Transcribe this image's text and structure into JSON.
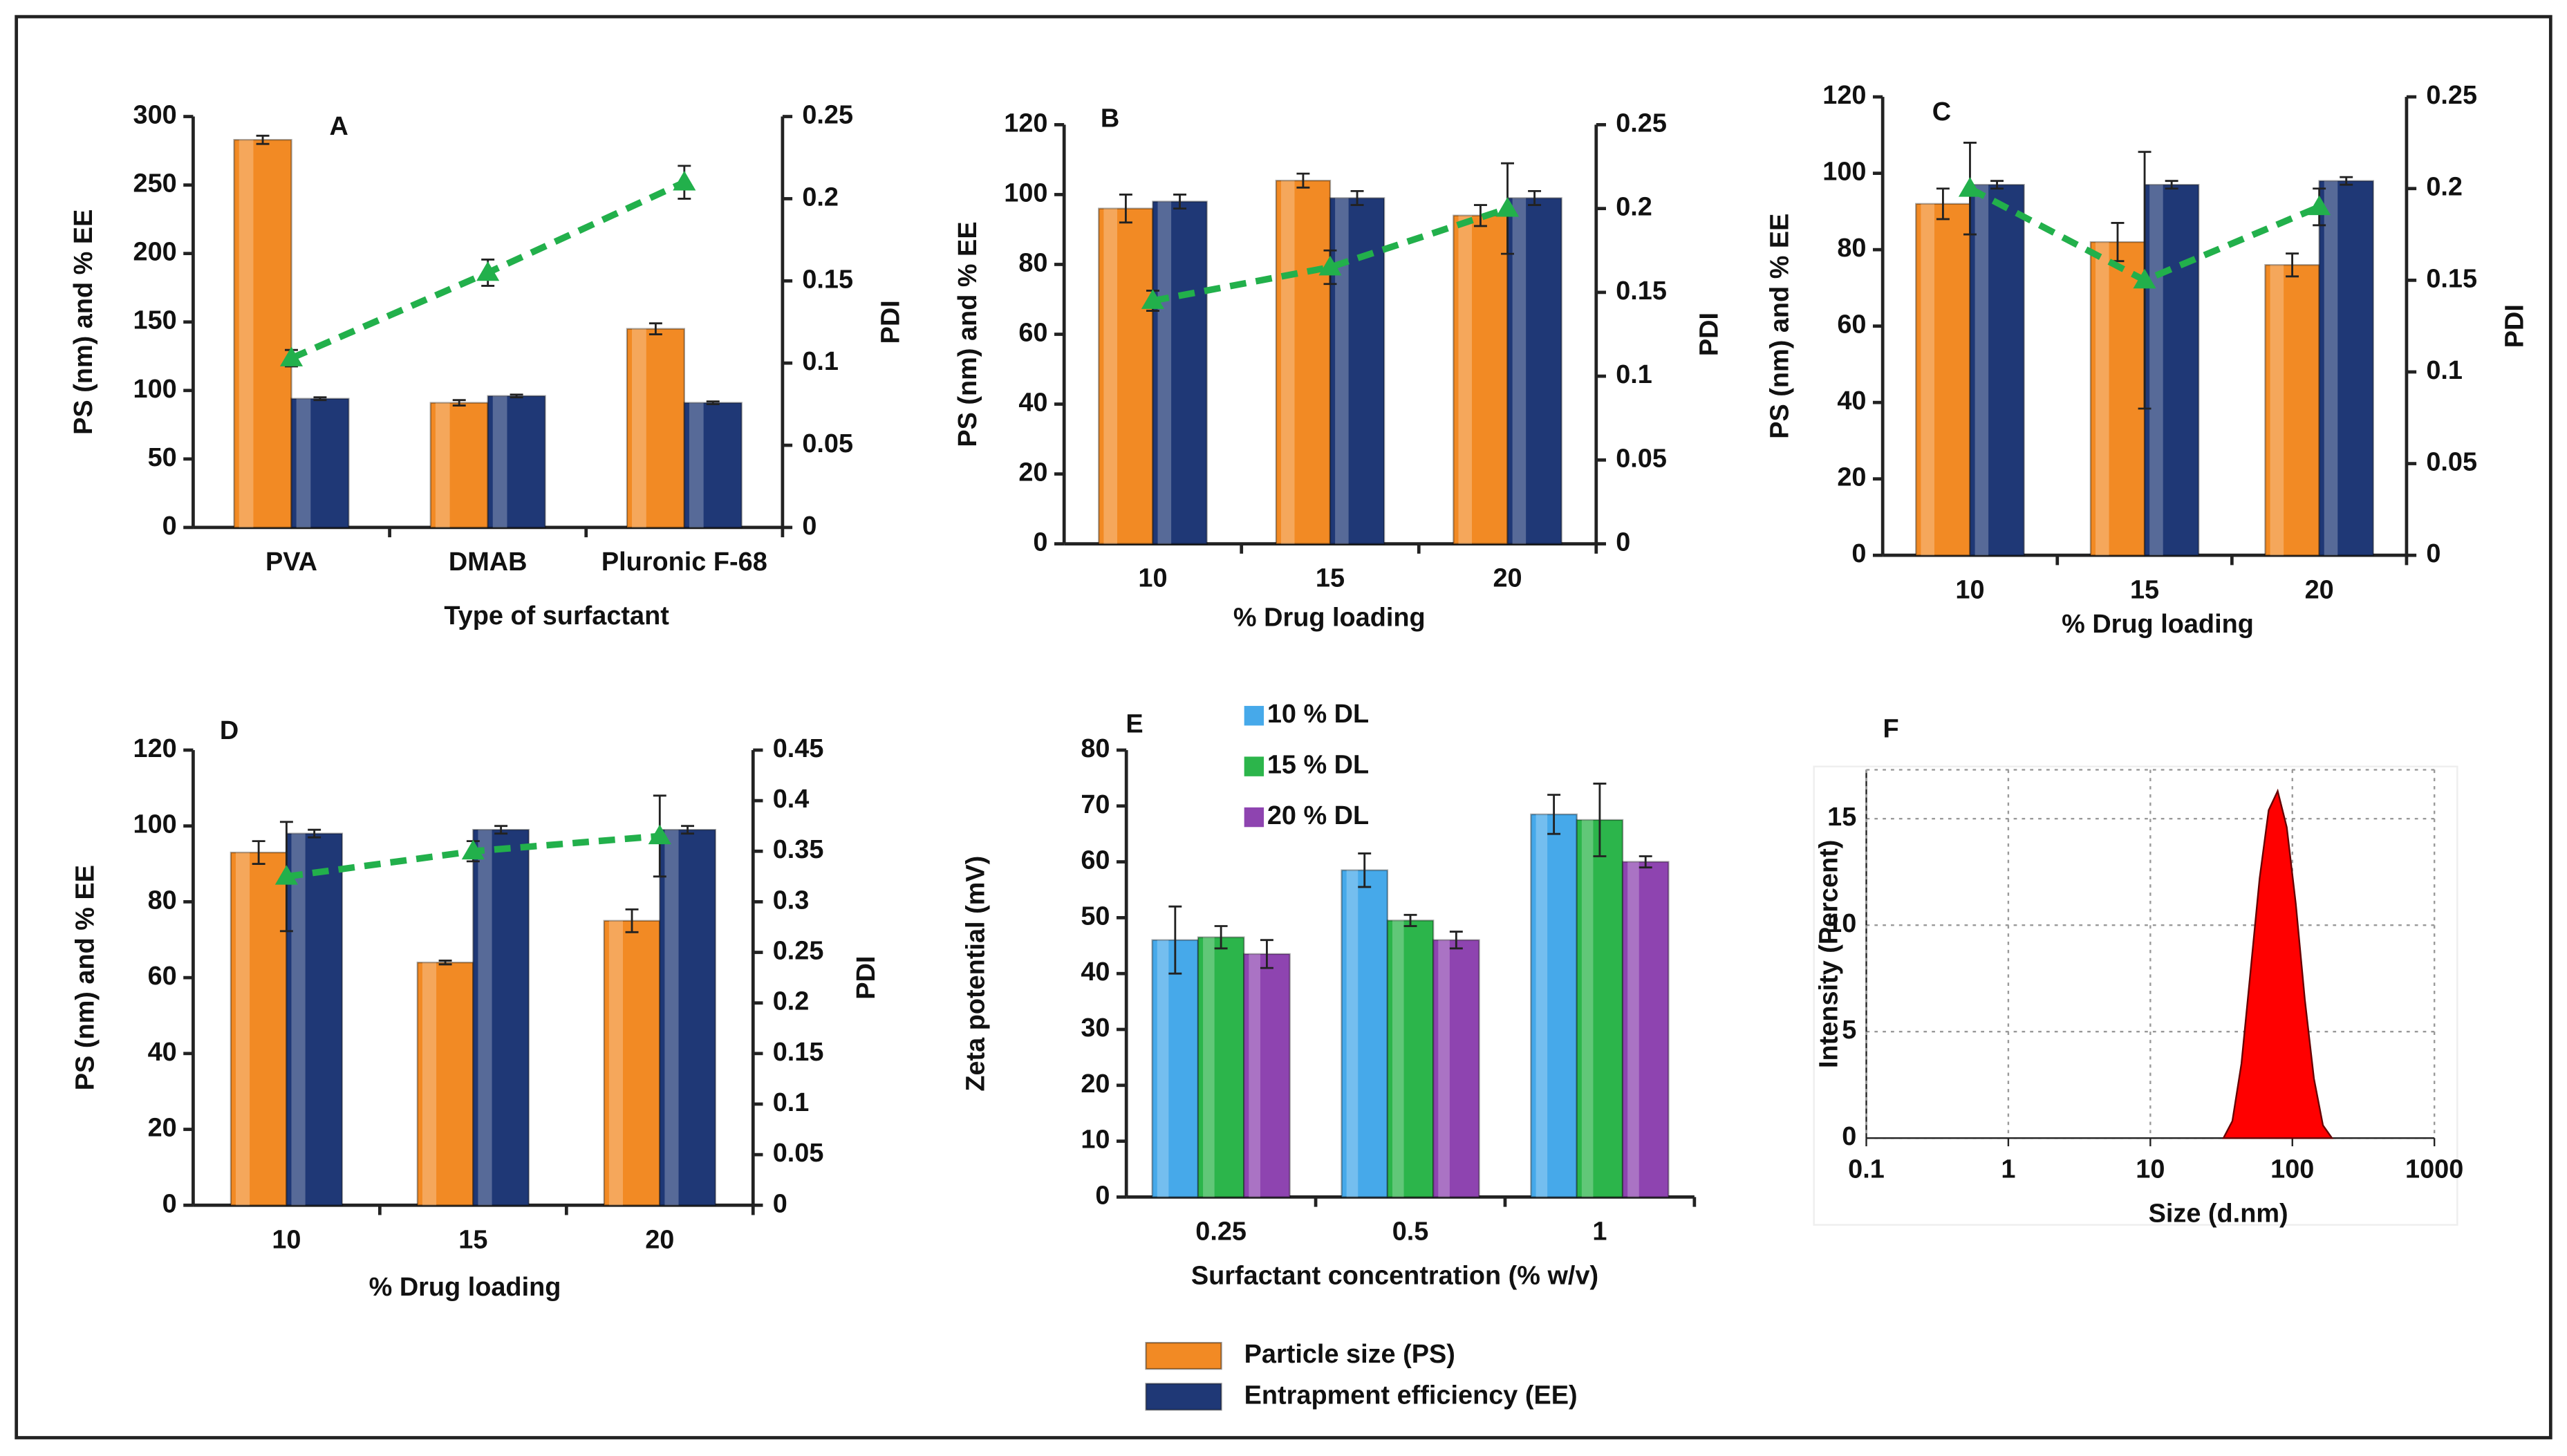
{
  "chart_data": [
    {
      "type": "combo",
      "title": "A",
      "x_label": "Type of surfactant",
      "y_label": "PS (nm) and % EE",
      "y2_label": "PDI",
      "categories": [
        "PVA",
        "DMAB",
        "Pluronic F-68"
      ],
      "ylim": [
        0,
        300
      ],
      "yticks": [
        0,
        50,
        100,
        150,
        200,
        250,
        300
      ],
      "y2lim": [
        0,
        0.25
      ],
      "y2ticks": [
        0,
        0.05,
        0.1,
        0.15,
        0.2,
        0.25
      ],
      "series": [
        {
          "color": "#f28a24",
          "values": [
            283,
            91,
            145
          ],
          "errors": [
            3,
            2,
            4
          ]
        },
        {
          "color": "#1f3876",
          "values": [
            94,
            96,
            91
          ],
          "errors": [
            1,
            1,
            1
          ]
        },
        {
          "color": "#22b04b",
          "axis": "y2",
          "values": [
            0.103,
            0.155,
            0.21
          ],
          "errors": [
            0.005,
            0.008,
            0.01
          ]
        }
      ]
    },
    {
      "type": "combo",
      "title": "B",
      "x_label": "% Drug loading",
      "y_label": "PS (nm) and % EE",
      "y2_label": "PDI",
      "categories": [
        "10",
        "15",
        "20"
      ],
      "ylim": [
        0,
        120
      ],
      "yticks": [
        0,
        20,
        40,
        60,
        80,
        100,
        120
      ],
      "y2lim": [
        0,
        0.25
      ],
      "y2ticks": [
        0,
        0.05,
        0.1,
        0.15,
        0.2,
        0.25
      ],
      "series": [
        {
          "color": "#f28a24",
          "values": [
            96,
            104,
            94
          ],
          "errors": [
            4,
            2,
            3
          ]
        },
        {
          "color": "#1f3876",
          "values": [
            98,
            99,
            99
          ],
          "errors": [
            2,
            2,
            2
          ]
        },
        {
          "color": "#22b04b",
          "axis": "y2",
          "values": [
            0.145,
            0.165,
            0.2
          ],
          "errors": [
            0.006,
            0.01,
            0.027
          ]
        }
      ]
    },
    {
      "type": "combo",
      "title": "C",
      "x_label": "% Drug loading",
      "y_label": "PS (nm) and % EE",
      "y2_label": "PDI",
      "categories": [
        "10",
        "15",
        "20"
      ],
      "ylim": [
        0,
        120
      ],
      "yticks": [
        0,
        20,
        40,
        60,
        80,
        100,
        120
      ],
      "y2lim": [
        0,
        0.25
      ],
      "y2ticks": [
        0,
        0.05,
        0.1,
        0.15,
        0.2,
        0.25
      ],
      "series": [
        {
          "color": "#f28a24",
          "values": [
            92,
            82,
            76
          ],
          "errors": [
            4,
            5,
            3
          ]
        },
        {
          "color": "#1f3876",
          "values": [
            97,
            97,
            98
          ],
          "errors": [
            1,
            1,
            1
          ]
        },
        {
          "color": "#22b04b",
          "axis": "y2",
          "values": [
            0.2,
            0.15,
            0.19
          ],
          "errors": [
            0.025,
            0.07,
            0.01
          ]
        }
      ]
    },
    {
      "type": "combo",
      "title": "D",
      "x_label": "% Drug loading",
      "y_label": "PS (nm) and % EE",
      "y2_label": "PDI",
      "categories": [
        "10",
        "15",
        "20"
      ],
      "ylim": [
        0,
        120
      ],
      "yticks": [
        0,
        20,
        40,
        60,
        80,
        100,
        120
      ],
      "y2lim": [
        0,
        0.45
      ],
      "y2ticks": [
        0,
        0.05,
        0.1,
        0.15,
        0.2,
        0.25,
        0.3,
        0.35,
        0.4,
        0.45
      ],
      "series": [
        {
          "color": "#f28a24",
          "values": [
            93,
            64,
            75
          ],
          "errors": [
            3,
            0.5,
            3
          ]
        },
        {
          "color": "#1f3876",
          "values": [
            98,
            99,
            99
          ],
          "errors": [
            1,
            1,
            1
          ]
        },
        {
          "color": "#22b04b",
          "axis": "y2",
          "values": [
            0.325,
            0.35,
            0.365
          ],
          "errors": [
            0.054,
            0.01,
            0.04
          ]
        }
      ]
    },
    {
      "type": "bar",
      "title": "E",
      "x_label": "Surfactant concentration (% w/v)",
      "y_label": "Zeta potential (mV)",
      "categories": [
        "0.25",
        "0.5",
        "1"
      ],
      "ylim": [
        0,
        80
      ],
      "yticks": [
        0,
        10,
        20,
        30,
        40,
        50,
        60,
        70,
        80
      ],
      "series": [
        {
          "name": "10 % DL",
          "color": "#46a9ea",
          "values": [
            46,
            58.5,
            68.5
          ],
          "errors": [
            6,
            3,
            3.5
          ]
        },
        {
          "name": "15 % DL",
          "color": "#2cb54b",
          "values": [
            46.5,
            49.5,
            67.5
          ],
          "errors": [
            2,
            1,
            6.5
          ]
        },
        {
          "name": "20 % DL",
          "color": "#8e44b0",
          "values": [
            43.5,
            46,
            60
          ],
          "errors": [
            2.5,
            1.5,
            1
          ]
        }
      ]
    },
    {
      "type": "area",
      "title": "F",
      "x_label": "Size (d.nm)",
      "y_label": "Intensity (Percent)",
      "xscale": "log",
      "grid": true,
      "color": "#ff0000",
      "xlim": [
        0.1,
        1000
      ],
      "xticks": [
        0.1,
        1,
        10,
        100,
        1000
      ],
      "ylim": [
        0,
        17.3
      ],
      "yticks": [
        0,
        5,
        10,
        15
      ],
      "x": [
        32.7,
        37.8,
        43.8,
        50.7,
        58.8,
        68.1,
        78.8,
        91.3,
        105.7,
        122.4,
        141.8,
        164.2,
        190.1
      ],
      "y": [
        0,
        0.8,
        3.5,
        7.8,
        12.2,
        15.4,
        16.3,
        14.6,
        11,
        6.5,
        2.8,
        0.6,
        0
      ]
    }
  ],
  "legend": [
    {
      "name": "Particle size (PS)",
      "color": "#f28a24"
    },
    {
      "name": "Entrapment efficiency (EE)",
      "color": "#1f3876"
    }
  ]
}
